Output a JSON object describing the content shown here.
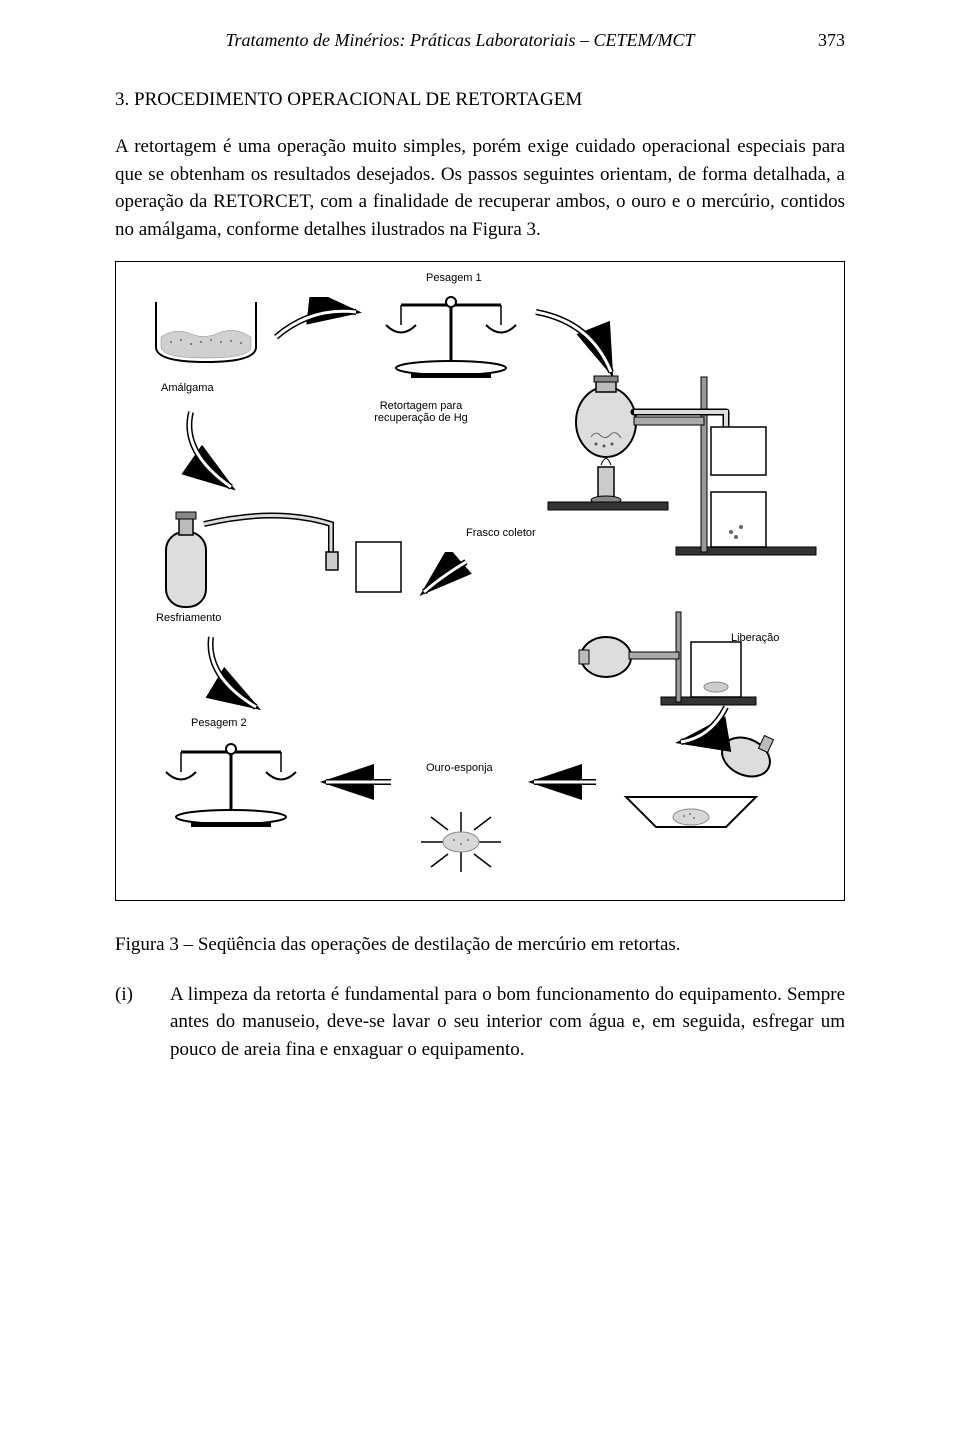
{
  "header": {
    "running_title": "Tratamento de Minérios: Práticas Laboratoriais – CETEM/MCT",
    "page_number": "373"
  },
  "section": {
    "heading": "3. PROCEDIMENTO OPERACIONAL DE RETORTAGEM",
    "paragraph": "A retortagem é uma operação muito simples, porém exige cuidado operacional especiais para que se obtenham os resultados desejados. Os passos seguintes orientam, de forma detalhada, a operação da RETORCET, com a finalidade de recuperar ambos, o ouro e o mercúrio, contidos no amálgama, conforme detalhes ilustrados na Figura 3."
  },
  "figure": {
    "labels": {
      "pesagem1": "Pesagem 1",
      "amalgama": "Amálgama",
      "retortagem": "Retortagem para\nrecuperação de Hg",
      "frasco": "Frasco coletor",
      "resfriamento": "Resfriamento",
      "liberacao": "Liberação",
      "pesagem2": "Pesagem 2",
      "ouro_esponja": "Ouro-esponja"
    },
    "colors": {
      "stroke": "#000000",
      "fill_gray": "#c0c0c0",
      "fill_light": "#e8e8e8",
      "bg": "#ffffff"
    },
    "caption": "Figura 3 – Seqüência das operações de destilação de mercúrio em retortas."
  },
  "list": {
    "item1": {
      "marker": "(i)",
      "text": "A limpeza da retorta é fundamental para o bom funcionamento do equipamento. Sempre antes do manuseio, deve-se lavar o seu interior com água e, em seguida, esfregar um pouco de areia fina e enxaguar o equipamento."
    }
  }
}
